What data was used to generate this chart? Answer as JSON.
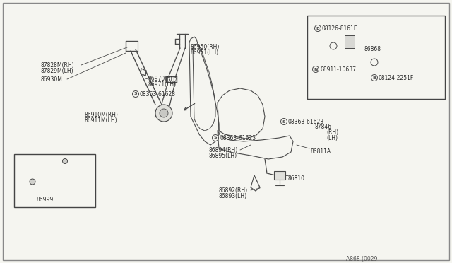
{
  "bg_color": "#f5f5f0",
  "line_color": "#4a4a4a",
  "text_color": "#2a2a2a",
  "footer": "A868 (0029",
  "labels": {
    "87828M_RH": "87828M(RH)",
    "87829M_LH": "87829M(LH)",
    "86930M": "86930M",
    "86950_RH": "86950(RH)",
    "86951_LH": "86951(LH)",
    "86970_RH": "86970(RH)",
    "86971_LH": "86971(LH)",
    "S1": "08363-61623",
    "86910M_RH": "86910M(RH)",
    "86911M_LH": "86911M(LH)",
    "86999": "86999",
    "S2": "08363-61623",
    "86894_RH": "86894(RH)",
    "86895_LH": "86895(LH)",
    "86892_RH": "86892(RH)",
    "86893_LH": "86893(LH)",
    "86810": "86810",
    "S3": "08363-61623",
    "87846": "87846",
    "87846_rh": "(RH)",
    "87846_lh": "(LH)",
    "86811A": "86811A",
    "B1": "08126-8161E",
    "86868": "86868",
    "N1": "08911-10637",
    "B2": "08124-2251F"
  }
}
